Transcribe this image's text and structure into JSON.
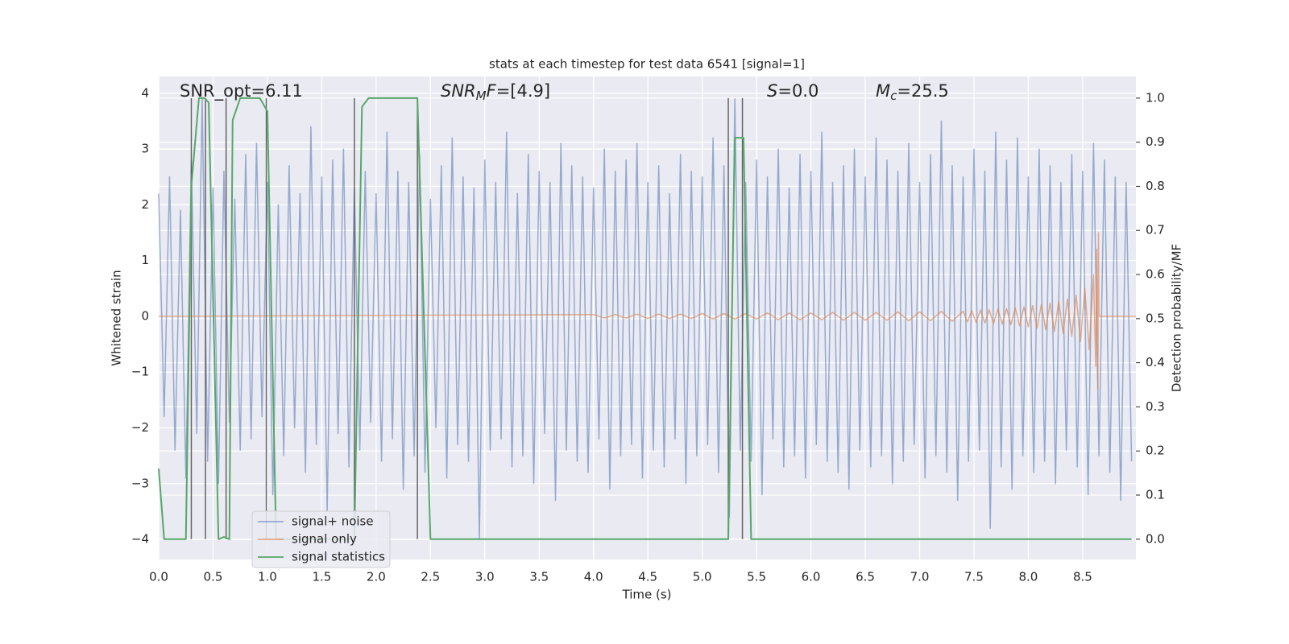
{
  "chart_data": {
    "type": "line",
    "title": "stats at each timestep for test data 6541 [signal=1]",
    "xlabel": "Time (s)",
    "ylabel": "Whitened strain",
    "y2label": "Detection probability/MF",
    "annotations": [
      {
        "plain": "SNR_opt=6.11"
      },
      {
        "main": "SNR",
        "sub": "M",
        "tail": "F",
        "rest": "=[4.9]"
      },
      {
        "main": "S",
        "rest": "=0.0"
      },
      {
        "main": "M",
        "sub": "c",
        "rest": "=25.5"
      }
    ],
    "xlim": [
      0,
      8.99
    ],
    "ylim": [
      -4.36,
      4.3
    ],
    "y2lim": [
      -0.046,
      1.049
    ],
    "xticks": [
      {
        "value": 0,
        "label": "0.0"
      },
      {
        "value": 0.5,
        "label": "0.5"
      },
      {
        "value": 1,
        "label": "1.0"
      },
      {
        "value": 1.5,
        "label": "1.5"
      },
      {
        "value": 2,
        "label": "2.0"
      },
      {
        "value": 2.5,
        "label": "2.5"
      },
      {
        "value": 3,
        "label": "3.0"
      },
      {
        "value": 3.5,
        "label": "3.5"
      },
      {
        "value": 4,
        "label": "4.0"
      },
      {
        "value": 4.5,
        "label": "4.5"
      },
      {
        "value": 5,
        "label": "5.0"
      },
      {
        "value": 5.5,
        "label": "5.5"
      },
      {
        "value": 6,
        "label": "6.0"
      },
      {
        "value": 6.5,
        "label": "6.5"
      },
      {
        "value": 7,
        "label": "7.0"
      },
      {
        "value": 7.5,
        "label": "7.5"
      },
      {
        "value": 8,
        "label": "8.0"
      },
      {
        "value": 8.5,
        "label": "8.5"
      }
    ],
    "yticks": [
      {
        "value": -4,
        "label": "−4"
      },
      {
        "value": -3,
        "label": "−3"
      },
      {
        "value": -2,
        "label": "−2"
      },
      {
        "value": -1,
        "label": "−1"
      },
      0,
      1,
      2,
      3,
      4
    ],
    "y2ticks": [
      {
        "value": 0,
        "label": "0.0"
      },
      {
        "value": 0.1,
        "label": "0.1"
      },
      {
        "value": 0.2,
        "label": "0.2"
      },
      {
        "value": 0.3,
        "label": "0.3"
      },
      {
        "value": 0.4,
        "label": "0.4"
      },
      {
        "value": 0.5,
        "label": "0.5"
      },
      {
        "value": 0.6,
        "label": "0.6"
      },
      {
        "value": 0.7,
        "label": "0.7"
      },
      {
        "value": 0.8,
        "label": "0.8"
      },
      {
        "value": 0.9,
        "label": "0.9"
      },
      {
        "value": 1,
        "label": "1.0"
      }
    ],
    "grid": true,
    "legend": "lower left",
    "vlines": [
      0.3,
      0.43,
      0.62,
      0.99,
      1.8,
      2.38,
      5.24,
      5.37
    ],
    "vline_color": "#555555",
    "series": [
      {
        "name": "signal+ noise",
        "color": "#4c72b0",
        "x": [
          0,
          0.05,
          0.1,
          0.15,
          0.2,
          0.25,
          0.3,
          0.35,
          0.4,
          0.45,
          0.5,
          0.55,
          0.6,
          0.65,
          0.7,
          0.75,
          0.8,
          0.85,
          0.9,
          0.95,
          1,
          1.05,
          1.1,
          1.15,
          1.2,
          1.25,
          1.3,
          1.35,
          1.4,
          1.45,
          1.5,
          1.55,
          1.6,
          1.65,
          1.7,
          1.75,
          1.8,
          1.85,
          1.9,
          1.95,
          2,
          2.05,
          2.1,
          2.15,
          2.2,
          2.25,
          2.3,
          2.35,
          2.4,
          2.45,
          2.5,
          2.55,
          2.6,
          2.65,
          2.7,
          2.75,
          2.8,
          2.85,
          2.9,
          2.95,
          3,
          3.05,
          3.1,
          3.15,
          3.2,
          3.25,
          3.3,
          3.35,
          3.4,
          3.45,
          3.5,
          3.55,
          3.6,
          3.65,
          3.7,
          3.75,
          3.8,
          3.85,
          3.9,
          3.95,
          4,
          4.05,
          4.1,
          4.15,
          4.2,
          4.25,
          4.3,
          4.35,
          4.4,
          4.45,
          4.5,
          4.55,
          4.6,
          4.65,
          4.7,
          4.75,
          4.8,
          4.85,
          4.9,
          4.95,
          5,
          5.05,
          5.1,
          5.15,
          5.2,
          5.25,
          5.3,
          5.35,
          5.4,
          5.45,
          5.5,
          5.55,
          5.6,
          5.65,
          5.7,
          5.75,
          5.8,
          5.85,
          5.9,
          5.95,
          6,
          6.05,
          6.1,
          6.15,
          6.2,
          6.25,
          6.3,
          6.35,
          6.4,
          6.45,
          6.5,
          6.55,
          6.6,
          6.65,
          6.7,
          6.75,
          6.8,
          6.85,
          6.9,
          6.95,
          7,
          7.05,
          7.1,
          7.15,
          7.2,
          7.25,
          7.3,
          7.35,
          7.4,
          7.45,
          7.5,
          7.55,
          7.6,
          7.65,
          7.7,
          7.75,
          7.8,
          7.85,
          7.9,
          7.95,
          8,
          8.05,
          8.1,
          8.15,
          8.2,
          8.25,
          8.3,
          8.35,
          8.4,
          8.45,
          8.5,
          8.55,
          8.6,
          8.65,
          8.7,
          8.75,
          8.8,
          8.85,
          8.9,
          8.95
        ],
        "values": [
          2.2,
          -1.8,
          2.5,
          -2.4,
          1.9,
          -2.9,
          2.8,
          -2.1,
          3.9,
          -2.6,
          2.3,
          -3.0,
          2.6,
          -1.9,
          2.1,
          -2.4,
          2.9,
          -2.2,
          3.1,
          -1.8,
          2.4,
          -3.2,
          2.0,
          -2.5,
          2.7,
          -2.0,
          2.2,
          -2.8,
          3.4,
          -2.3,
          2.5,
          -3.5,
          2.8,
          -2.1,
          3.0,
          -2.7,
          2.3,
          -2.4,
          2.6,
          -1.9,
          2.2,
          -2.6,
          3.3,
          -2.2,
          2.6,
          -3.1,
          2.4,
          -2.5,
          2.9,
          -2.8,
          2.1,
          -2.0,
          2.7,
          -2.9,
          3.2,
          -2.3,
          2.5,
          -2.6,
          2.3,
          -4.0,
          2.8,
          -2.4,
          2.4,
          -2.2,
          3.3,
          -2.7,
          2.2,
          -2.5,
          2.9,
          -3.0,
          2.6,
          -2.1,
          2.4,
          -3.3,
          3.1,
          -2.4,
          2.7,
          -2.6,
          2.5,
          -2.8,
          2.3,
          -2.2,
          3.0,
          -3.1,
          2.6,
          -2.5,
          2.8,
          -2.3,
          3.1,
          -2.9,
          2.4,
          -2.4,
          2.7,
          -2.7,
          2.2,
          -2.2,
          2.9,
          -3.0,
          2.6,
          -2.5,
          2.5,
          -2.3,
          3.2,
          -2.8,
          2.7,
          -3.6,
          3.9,
          -2.4,
          2.4,
          -2.6,
          2.8,
          -3.2,
          2.5,
          -2.2,
          3.0,
          -2.7,
          2.3,
          -2.5,
          2.9,
          -2.9,
          2.6,
          -2.3,
          3.3,
          -2.6,
          2.4,
          -2.8,
          2.7,
          -3.1,
          3.0,
          -2.4,
          2.5,
          -2.7,
          3.2,
          -2.5,
          2.8,
          -3.0,
          2.6,
          -2.6,
          3.1,
          -2.3,
          2.4,
          -2.9,
          2.9,
          -2.5,
          3.5,
          -2.8,
          2.7,
          -3.3,
          2.5,
          -2.6,
          3.0,
          -2.4,
          2.6,
          -3.8,
          3.3,
          -2.7,
          2.8,
          -3.1,
          3.2,
          -2.5,
          2.5,
          -2.8,
          3.0,
          -2.6,
          2.7,
          -3.0,
          2.4,
          -2.4,
          2.9,
          -2.7,
          2.6,
          -3.2,
          3.1,
          -2.5,
          2.8,
          -2.8,
          2.5,
          -3.3,
          2.4,
          -2.6
        ]
      },
      {
        "name": "signal only",
        "color": "#dd8452",
        "x": [
          0,
          4.0,
          4.1,
          4.2,
          4.3,
          4.4,
          4.5,
          4.6,
          4.7,
          4.8,
          4.9,
          5.0,
          5.1,
          5.2,
          5.3,
          5.4,
          5.5,
          5.6,
          5.7,
          5.8,
          5.9,
          6.0,
          6.1,
          6.2,
          6.3,
          6.4,
          6.5,
          6.6,
          6.7,
          6.8,
          6.9,
          7.0,
          7.1,
          7.2,
          7.3,
          7.4,
          7.44,
          7.48,
          7.52,
          7.56,
          7.6,
          7.64,
          7.68,
          7.72,
          7.76,
          7.8,
          7.84,
          7.88,
          7.92,
          7.96,
          8.0,
          8.04,
          8.08,
          8.12,
          8.16,
          8.2,
          8.24,
          8.28,
          8.32,
          8.36,
          8.4,
          8.44,
          8.48,
          8.52,
          8.56,
          8.6,
          8.62,
          8.63,
          8.64,
          8.645,
          8.65,
          8.99
        ],
        "values": [
          0,
          0.03,
          -0.03,
          0.03,
          -0.03,
          0.04,
          -0.04,
          0.04,
          -0.04,
          0.04,
          -0.04,
          0.05,
          -0.05,
          0.05,
          -0.05,
          0.05,
          -0.05,
          0.06,
          -0.06,
          0.06,
          -0.06,
          0.06,
          -0.06,
          0.07,
          -0.07,
          0.07,
          -0.07,
          0.07,
          -0.07,
          0.08,
          -0.08,
          0.08,
          -0.08,
          0.09,
          -0.09,
          0.09,
          -0.1,
          0.1,
          -0.11,
          0.11,
          -0.12,
          0.12,
          -0.13,
          0.13,
          -0.14,
          0.14,
          -0.15,
          0.15,
          -0.17,
          0.17,
          -0.19,
          0.19,
          -0.21,
          0.21,
          -0.24,
          0.24,
          -0.27,
          0.27,
          -0.31,
          0.31,
          -0.36,
          0.38,
          -0.45,
          0.5,
          -0.6,
          0.75,
          -0.9,
          1.2,
          -1.3,
          1.5,
          0,
          0
        ]
      },
      {
        "name": "signal statistics",
        "color": "#55a868",
        "axis": "y2",
        "x": [
          0,
          0.05,
          0.25,
          0.3,
          0.37,
          0.42,
          0.46,
          0.55,
          0.6,
          0.65,
          0.68,
          0.75,
          0.93,
          1.0,
          1.08,
          1.8,
          1.87,
          1.93,
          2.38,
          2.5,
          2.95,
          3.0,
          5.24,
          5.3,
          5.38,
          5.45,
          8.95
        ],
        "values": [
          0.16,
          0.0,
          0.0,
          0.8,
          1.0,
          1.0,
          0.99,
          0.0,
          0.005,
          0.0,
          0.95,
          1.0,
          1.0,
          0.97,
          0.0,
          0.0,
          0.98,
          1.0,
          1.0,
          0.0,
          0.0,
          0.0,
          0.0,
          0.91,
          0.91,
          0.0,
          0.0
        ]
      }
    ]
  }
}
